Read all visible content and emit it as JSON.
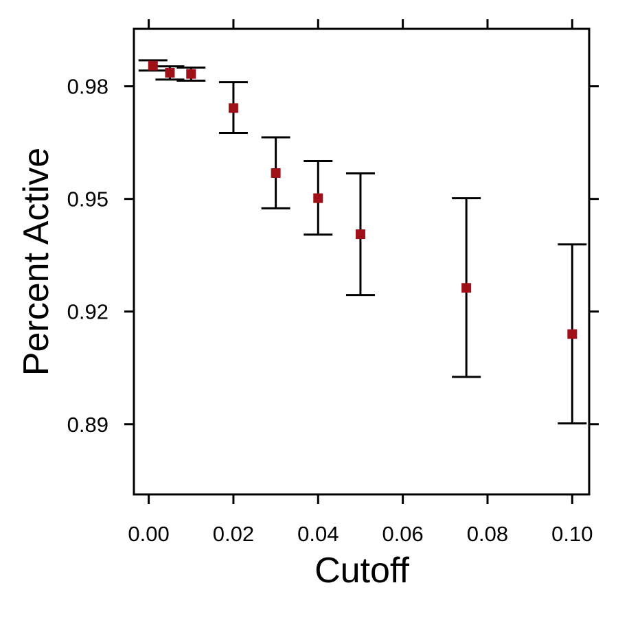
{
  "chart_data": {
    "type": "scatter",
    "xlabel": "Cutoff",
    "ylabel": "Percent Active",
    "xlim": [
      -0.0035,
      0.104
    ],
    "ylim": [
      0.8713,
      0.9953
    ],
    "x_ticks": [
      0.0,
      0.02,
      0.04,
      0.06,
      0.08,
      0.1
    ],
    "x_tick_labels": [
      "0.00",
      "0.02",
      "0.04",
      "0.06",
      "0.08",
      "0.10"
    ],
    "y_ticks": [
      0.89,
      0.92,
      0.95,
      0.98
    ],
    "y_tick_labels": [
      "0.89",
      "0.92",
      "0.95",
      "0.98"
    ],
    "grid": false,
    "legend": "none",
    "marker": "square",
    "marker_color": "#a01018",
    "errorbar_color": "#000000",
    "points": [
      {
        "x": 0.001,
        "y": 0.9855,
        "lower": 0.9842,
        "upper": 0.9869
      },
      {
        "x": 0.005,
        "y": 0.9836,
        "lower": 0.9818,
        "upper": 0.9853
      },
      {
        "x": 0.01,
        "y": 0.9833,
        "lower": 0.9815,
        "upper": 0.985
      },
      {
        "x": 0.02,
        "y": 0.9742,
        "lower": 0.9676,
        "upper": 0.9811
      },
      {
        "x": 0.03,
        "y": 0.9569,
        "lower": 0.9475,
        "upper": 0.9664
      },
      {
        "x": 0.04,
        "y": 0.9502,
        "lower": 0.9405,
        "upper": 0.9601
      },
      {
        "x": 0.05,
        "y": 0.9406,
        "lower": 0.9244,
        "upper": 0.9568
      },
      {
        "x": 0.075,
        "y": 0.9263,
        "lower": 0.9026,
        "upper": 0.9502
      },
      {
        "x": 0.1,
        "y": 0.914,
        "lower": 0.8902,
        "upper": 0.9379
      }
    ]
  }
}
